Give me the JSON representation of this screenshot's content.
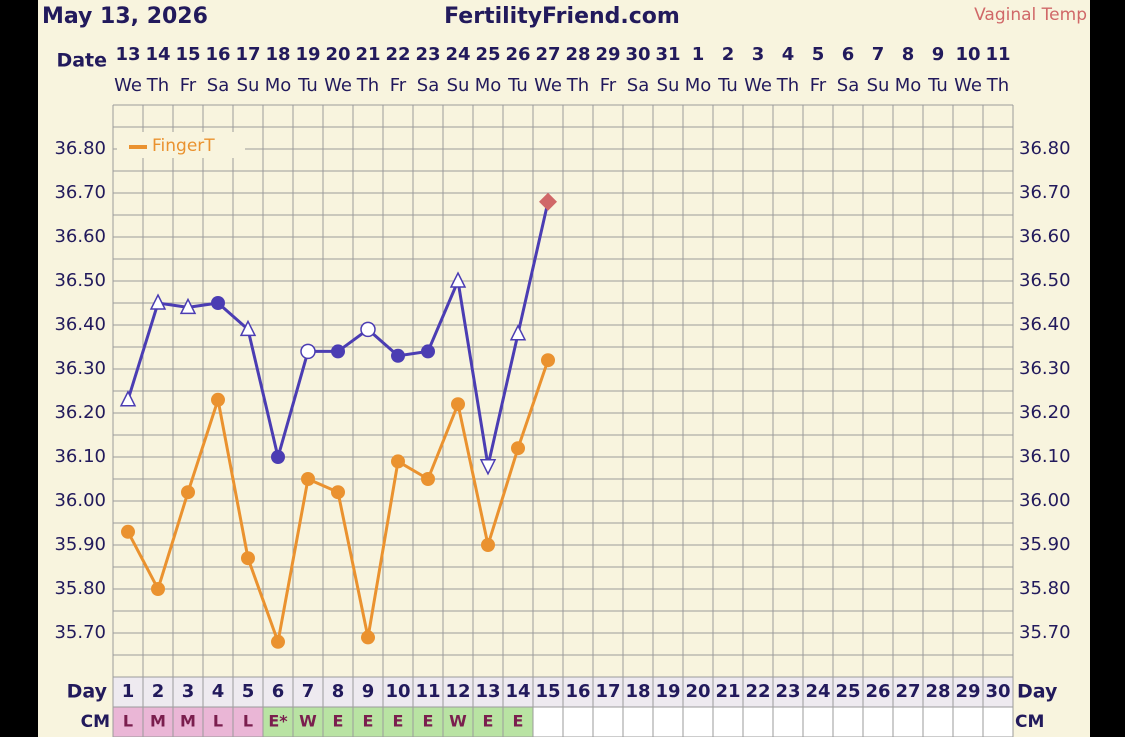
{
  "chart_data": {
    "type": "line",
    "title": "FertilityFriend.com",
    "date": "May 13, 2026",
    "date_label": "Date",
    "day_label": "Day",
    "cm_label": "CM",
    "categories": [
      "13",
      "14",
      "15",
      "16",
      "17",
      "18",
      "19",
      "20",
      "21",
      "22",
      "23",
      "24",
      "25",
      "26",
      "27",
      "28",
      "29",
      "30",
      "31",
      "1",
      "2",
      "3",
      "4",
      "5",
      "6",
      "7",
      "8",
      "9",
      "10",
      "11"
    ],
    "weekdays": [
      "We",
      "Th",
      "Fr",
      "Sa",
      "Su",
      "Mo",
      "Tu",
      "We",
      "Th",
      "Fr",
      "Sa",
      "Su",
      "Mo",
      "Tu",
      "We",
      "Th",
      "Fr",
      "Sa",
      "Su",
      "Mo",
      "Tu",
      "We",
      "Th",
      "Fr",
      "Sa",
      "Su",
      "Mo",
      "Tu",
      "We",
      "Th"
    ],
    "days": [
      1,
      2,
      3,
      4,
      5,
      6,
      7,
      8,
      9,
      10,
      11,
      12,
      13,
      14,
      15,
      16,
      17,
      18,
      19,
      20,
      21,
      22,
      23,
      24,
      25,
      26,
      27,
      28,
      29,
      30
    ],
    "cm": [
      "L",
      "M",
      "M",
      "L",
      "L",
      "E*",
      "W",
      "E",
      "E",
      "E",
      "E",
      "W",
      "E",
      "E",
      null,
      null,
      null,
      null,
      null,
      null,
      null,
      null,
      null,
      null,
      null,
      null,
      null,
      null,
      null,
      null
    ],
    "cm_colors": [
      "#eab6d6",
      "#eab6d6",
      "#eab6d6",
      "#eab6d6",
      "#eab6d6",
      "#b9e3a3",
      "#b9e3a3",
      "#b9e3a3",
      "#b9e3a3",
      "#b9e3a3",
      "#b9e3a3",
      "#b9e3a3",
      "#b9e3a3",
      "#b9e3a3",
      null,
      null,
      null,
      null,
      null,
      null,
      null,
      null,
      null,
      null,
      null,
      null,
      null,
      null,
      null,
      null
    ],
    "series": [
      {
        "name": "Vaginal Temp",
        "color": "#4b3db3",
        "label_color": "#d06868",
        "values": [
          36.23,
          36.45,
          36.44,
          36.45,
          36.39,
          36.1,
          36.34,
          36.34,
          36.39,
          36.33,
          36.34,
          36.5,
          36.08,
          36.38,
          36.68,
          null,
          null,
          null,
          null,
          null,
          null,
          null,
          null,
          null,
          null,
          null,
          null,
          null,
          null,
          null
        ],
        "markers": [
          "triangle",
          "triangle",
          "triangle",
          "dot",
          "triangle",
          "dot",
          "circle",
          "dot",
          "circle",
          "dot",
          "dot",
          "triangle",
          "triangle-down",
          "triangle",
          "diamond",
          null,
          null,
          null,
          null,
          null,
          null,
          null,
          null,
          null,
          null,
          null,
          null,
          null,
          null,
          null
        ]
      },
      {
        "name": "FingerT",
        "color": "#ea922f",
        "values": [
          35.93,
          35.8,
          36.02,
          36.23,
          35.87,
          35.68,
          36.05,
          36.02,
          35.69,
          36.09,
          36.05,
          36.22,
          35.9,
          36.12,
          36.32,
          null,
          null,
          null,
          null,
          null,
          null,
          null,
          null,
          null,
          null,
          null,
          null,
          null,
          null,
          null
        ]
      }
    ],
    "ylim": [
      35.6,
      36.9
    ],
    "yticks": [
      {
        "value": 35.7,
        "label": "35.70"
      },
      {
        "value": 35.8,
        "label": "35.80"
      },
      {
        "value": 35.9,
        "label": "35.90"
      },
      {
        "value": 36.0,
        "label": "36.00"
      },
      {
        "value": 36.1,
        "label": "36.10"
      },
      {
        "value": 36.2,
        "label": "36.20"
      },
      {
        "value": 36.3,
        "label": "36.30"
      },
      {
        "value": 36.4,
        "label": "36.40"
      },
      {
        "value": 36.5,
        "label": "36.50"
      },
      {
        "value": 36.6,
        "label": "36.60"
      },
      {
        "value": 36.7,
        "label": "36.70"
      },
      {
        "value": 36.8,
        "label": "36.80"
      }
    ],
    "minor_yticks": [
      35.6,
      35.65,
      35.75,
      35.85,
      35.95,
      36.05,
      36.15,
      36.25,
      36.35,
      36.45,
      36.55,
      36.65,
      36.75,
      36.85,
      36.9
    ],
    "grid": true
  }
}
